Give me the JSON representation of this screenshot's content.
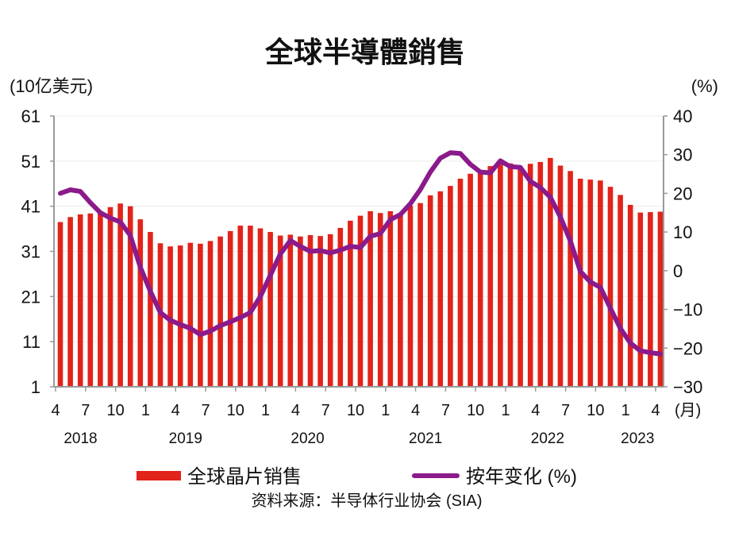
{
  "chart_data": {
    "type": "bar+line",
    "title": "全球半導體銷售",
    "ylabel_left": "(10亿美元)",
    "ylabel_right": "(%)",
    "xlabel_unit": "(月)",
    "ylim_left": [
      1,
      61
    ],
    "yticks_left": [
      1,
      11,
      21,
      31,
      41,
      51,
      61
    ],
    "ylim_right": [
      -30,
      40
    ],
    "yticks_right": [
      -30,
      -20,
      -10,
      0,
      10,
      20,
      30,
      40
    ],
    "x_tick_labels": [
      "4",
      "7",
      "10",
      "1",
      "4",
      "7",
      "10",
      "1",
      "4",
      "7",
      "10",
      "1",
      "4",
      "7",
      "10",
      "1",
      "4",
      "7",
      "10",
      "1",
      "4"
    ],
    "year_labels": [
      "2018",
      "2019",
      "2020",
      "2021",
      "2022",
      "2023"
    ],
    "x": [
      "2018-04",
      "2018-05",
      "2018-06",
      "2018-07",
      "2018-08",
      "2018-09",
      "2018-10",
      "2018-11",
      "2018-12",
      "2019-01",
      "2019-02",
      "2019-03",
      "2019-04",
      "2019-05",
      "2019-06",
      "2019-07",
      "2019-08",
      "2019-09",
      "2019-10",
      "2019-11",
      "2019-12",
      "2020-01",
      "2020-02",
      "2020-03",
      "2020-04",
      "2020-05",
      "2020-06",
      "2020-07",
      "2020-08",
      "2020-09",
      "2020-10",
      "2020-11",
      "2020-12",
      "2021-01",
      "2021-02",
      "2021-03",
      "2021-04",
      "2021-05",
      "2021-06",
      "2021-07",
      "2021-08",
      "2021-09",
      "2021-10",
      "2021-11",
      "2021-12",
      "2022-01",
      "2022-02",
      "2022-03",
      "2022-04",
      "2022-05",
      "2022-06",
      "2022-07",
      "2022-08",
      "2022-09",
      "2022-10",
      "2022-11",
      "2022-12",
      "2023-01",
      "2023-02",
      "2023-03",
      "2023-04"
    ],
    "series": [
      {
        "name": "全球晶片销售",
        "type": "bar",
        "axis": "left",
        "color": "#e2231a",
        "values": [
          37.5,
          38.6,
          39.2,
          39.4,
          39.8,
          40.8,
          41.6,
          41.0,
          38.1,
          35.3,
          32.8,
          32.1,
          32.3,
          32.9,
          32.7,
          33.3,
          34.3,
          35.5,
          36.7,
          36.7,
          36.1,
          35.3,
          34.5,
          34.7,
          34.3,
          34.6,
          34.4,
          34.8,
          36.2,
          37.8,
          38.9,
          39.9,
          39.5,
          39.9,
          39.2,
          41.1,
          41.7,
          43.4,
          44.3,
          45.5,
          47.1,
          48.2,
          48.5,
          49.9,
          50.6,
          50.5,
          49.7,
          50.4,
          50.8,
          51.7,
          50.0,
          48.8,
          47.1,
          46.9,
          46.7,
          45.3,
          43.5,
          41.3,
          39.6,
          39.7,
          39.8
        ]
      },
      {
        "name": "按年变化 (%)",
        "type": "line",
        "axis": "right",
        "color": "#8b1a8b",
        "values": [
          20.0,
          20.9,
          20.5,
          17.6,
          15.0,
          13.6,
          12.6,
          9.1,
          0.9,
          -5.3,
          -10.8,
          -12.8,
          -13.9,
          -14.9,
          -16.5,
          -15.6,
          -14.2,
          -13.2,
          -12.1,
          -10.8,
          -6.7,
          -1.2,
          4.3,
          7.8,
          6.3,
          5.0,
          5.2,
          4.6,
          5.3,
          6.3,
          6.0,
          8.9,
          9.6,
          13.2,
          14.5,
          17.3,
          21.0,
          25.5,
          29.1,
          30.5,
          30.3,
          27.5,
          25.5,
          25.3,
          28.4,
          26.9,
          26.7,
          23.1,
          21.5,
          19.0,
          13.9,
          7.7,
          -0.2,
          -2.9,
          -4.3,
          -9.7,
          -14.9,
          -18.7,
          -20.7,
          -21.2,
          -21.5
        ]
      }
    ],
    "grid": "horizontal",
    "legend_position": "bottom",
    "source": "资料来源：半导体行业协会 (SIA)"
  }
}
